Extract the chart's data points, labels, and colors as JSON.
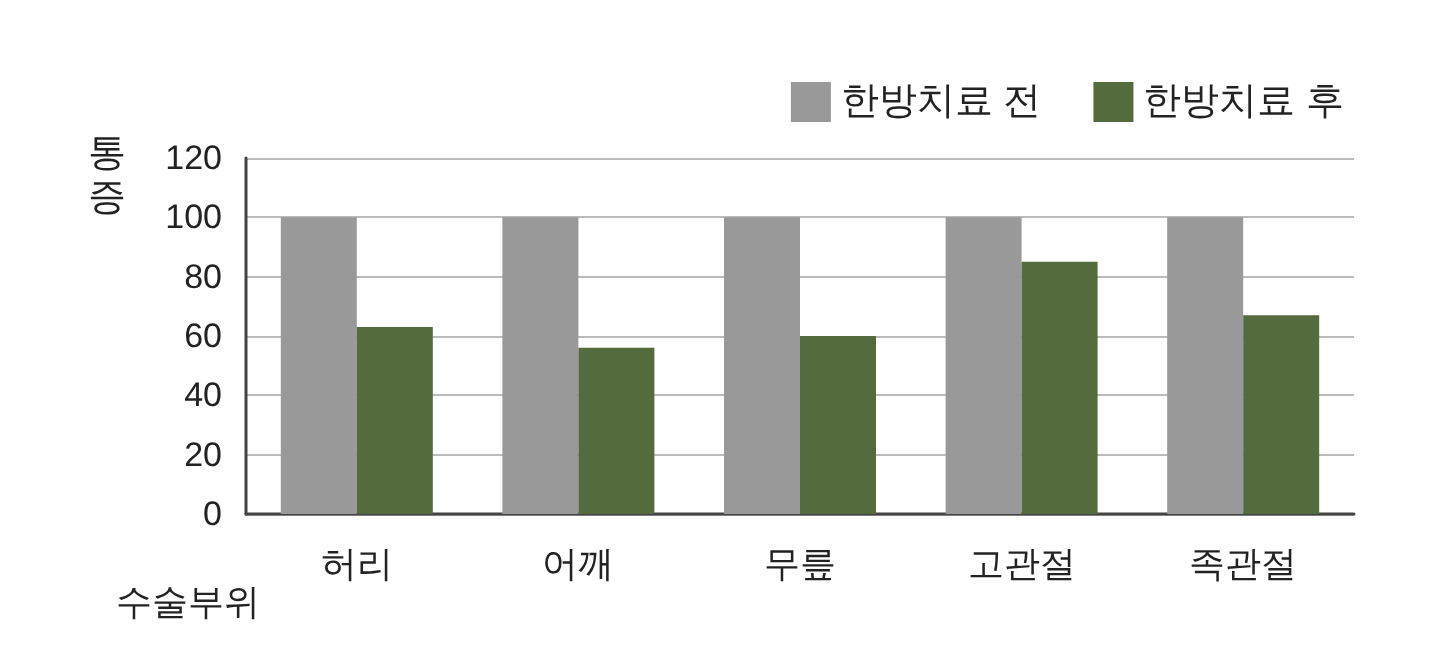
{
  "chart_data": {
    "type": "bar",
    "ylabel": "통증",
    "xlabel": "수술부위",
    "categories": [
      "허리",
      "어깨",
      "무릎",
      "고관절",
      "족관절"
    ],
    "series": [
      {
        "name": "한방치료 전",
        "color": "#999999",
        "values": [
          100,
          100,
          100,
          100,
          100
        ]
      },
      {
        "name": "한방치료 후",
        "color": "#546b3e",
        "values": [
          63,
          56,
          60,
          85,
          67
        ]
      }
    ],
    "ylim": [
      0,
      120
    ],
    "yticks": [
      0,
      20,
      40,
      60,
      80,
      100,
      120
    ],
    "grid": "y",
    "legend": "top right"
  }
}
